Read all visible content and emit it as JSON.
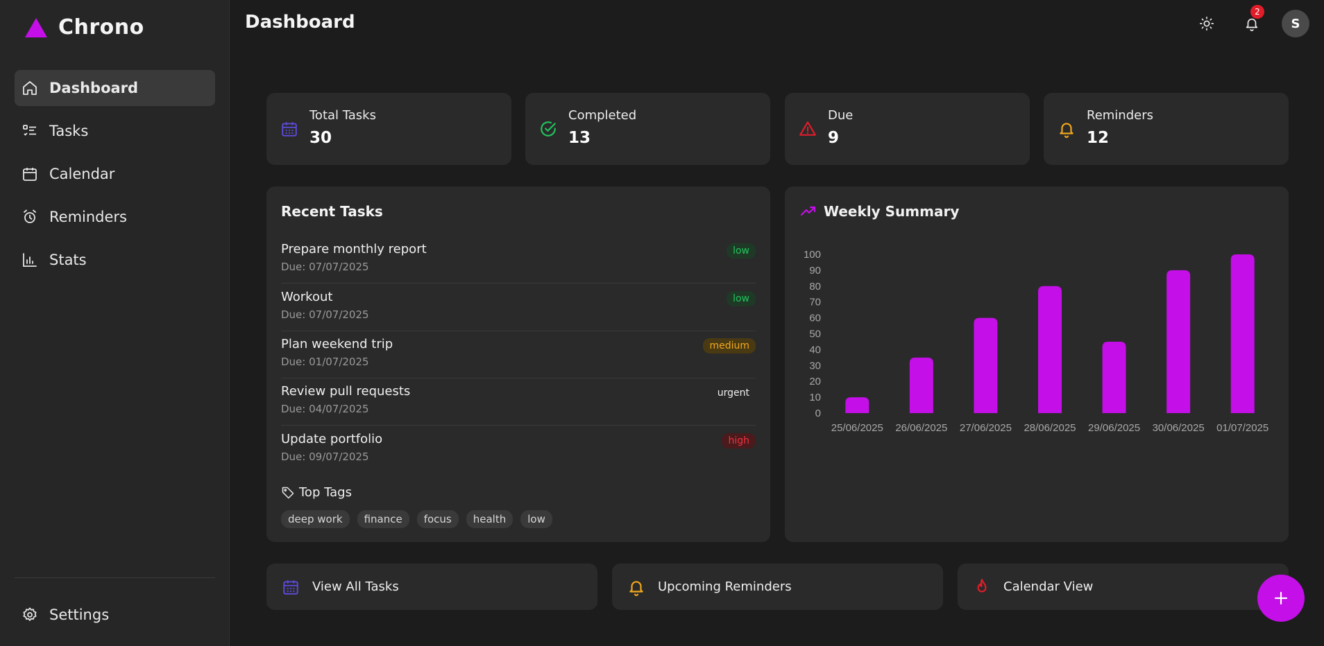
{
  "app": {
    "name": "Chrono",
    "accent": "#c40fe8"
  },
  "sidebar": {
    "items": [
      {
        "label": "Dashboard",
        "icon": "home-icon"
      },
      {
        "label": "Tasks",
        "icon": "tasks-icon"
      },
      {
        "label": "Calendar",
        "icon": "calendar-icon"
      },
      {
        "label": "Reminders",
        "icon": "alarm-icon"
      },
      {
        "label": "Stats",
        "icon": "bar-chart-icon"
      }
    ],
    "settings_label": "Settings"
  },
  "header": {
    "title": "Dashboard",
    "notification_count": "2",
    "avatar_initial": "S"
  },
  "stats": [
    {
      "label": "Total Tasks",
      "value": "30",
      "icon": "calendar-icon",
      "color": "#5b4bd8"
    },
    {
      "label": "Completed",
      "value": "13",
      "icon": "check-circle-icon",
      "color": "#22c55e"
    },
    {
      "label": "Due",
      "value": "9",
      "icon": "warning-icon",
      "color": "#e11d2a"
    },
    {
      "label": "Reminders",
      "value": "12",
      "icon": "bell-icon",
      "color": "#f0a81c"
    }
  ],
  "recent_tasks": {
    "title": "Recent Tasks",
    "items": [
      {
        "name": "Prepare monthly report",
        "due": "Due: 07/07/2025",
        "priority": "low"
      },
      {
        "name": "Workout",
        "due": "Due: 07/07/2025",
        "priority": "low"
      },
      {
        "name": "Plan weekend trip",
        "due": "Due: 01/07/2025",
        "priority": "medium"
      },
      {
        "name": "Review pull requests",
        "due": "Due: 04/07/2025",
        "priority": "urgent"
      },
      {
        "name": "Update portfolio",
        "due": "Due: 09/07/2025",
        "priority": "high"
      }
    ],
    "tags_title": "Top Tags",
    "tags": [
      "deep work",
      "finance",
      "focus",
      "health",
      "low"
    ]
  },
  "chart_data": {
    "type": "bar",
    "title": "Weekly Summary",
    "categories": [
      "25/06/2025",
      "26/06/2025",
      "27/06/2025",
      "28/06/2025",
      "29/06/2025",
      "30/06/2025",
      "01/07/2025"
    ],
    "values": [
      10,
      35,
      60,
      80,
      45,
      90,
      100
    ],
    "ylim": [
      0,
      100
    ],
    "yticks": [
      0,
      10,
      20,
      30,
      40,
      50,
      60,
      70,
      80,
      90,
      100
    ],
    "xlabel": "",
    "ylabel": "",
    "color": "#c40fe8"
  },
  "quick_links": [
    {
      "label": "View All Tasks",
      "icon": "calendar-icon"
    },
    {
      "label": "Upcoming Reminders",
      "icon": "bell-icon"
    },
    {
      "label": "Calendar View",
      "icon": "flame-icon"
    }
  ]
}
